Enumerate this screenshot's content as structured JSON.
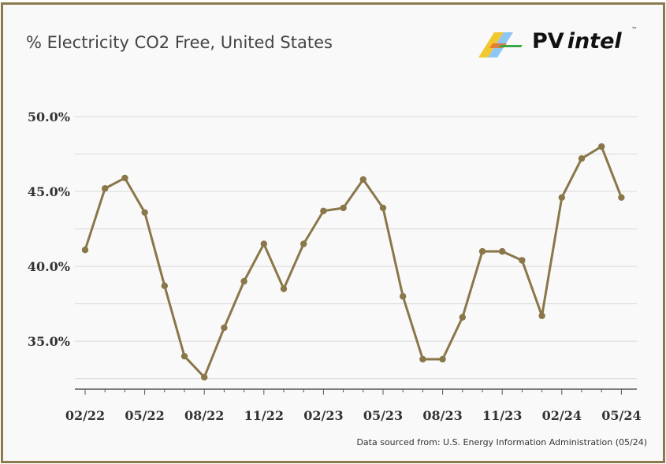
{
  "title": "% Electricity CO2 Free, United States",
  "logo": {
    "pv": "PV",
    "intel": "intel",
    "tm": "™",
    "icon": "pv-intel-logo-icon"
  },
  "source": "Data sourced from: U.S. Energy Information Administration (05/24)",
  "colors": {
    "line": "#8a7749",
    "grid": "#d9d9d9",
    "frame": "#8a7a4e",
    "axis": "#555555"
  },
  "chart_data": {
    "type": "line",
    "title": "% Electricity CO2 Free, United States",
    "xlabel": "",
    "ylabel": "",
    "ylim": [
      31.8,
      50.0
    ],
    "yticks": [
      50.0,
      45.0,
      40.0,
      35.0
    ],
    "ytick_labels": [
      "50.0%",
      "45.0%",
      "40.0%",
      "35.0%"
    ],
    "grid": true,
    "x_label_ticks": [
      "02/22",
      "05/22",
      "08/22",
      "11/22",
      "02/23",
      "05/23",
      "08/23",
      "11/23",
      "02/24",
      "05/24"
    ],
    "x": [
      "02/22",
      "03/22",
      "04/22",
      "05/22",
      "06/22",
      "07/22",
      "08/22",
      "09/22",
      "10/22",
      "11/22",
      "12/22",
      "01/23",
      "02/23",
      "03/23",
      "04/23",
      "05/23",
      "06/23",
      "07/23",
      "08/23",
      "09/23",
      "10/23",
      "11/23",
      "12/23",
      "01/24",
      "02/24",
      "03/24",
      "04/24",
      "05/24"
    ],
    "series": [
      {
        "values": [
          41.1,
          45.2,
          45.9,
          43.6,
          38.7,
          34.0,
          32.6,
          35.9,
          39.0,
          41.5,
          38.5,
          41.5,
          43.7,
          43.9,
          45.8,
          43.9,
          38.0,
          33.8,
          33.8,
          36.6,
          41.0,
          41.0,
          40.4,
          36.7,
          44.6,
          47.2,
          48.0,
          44.6
        ]
      }
    ]
  }
}
